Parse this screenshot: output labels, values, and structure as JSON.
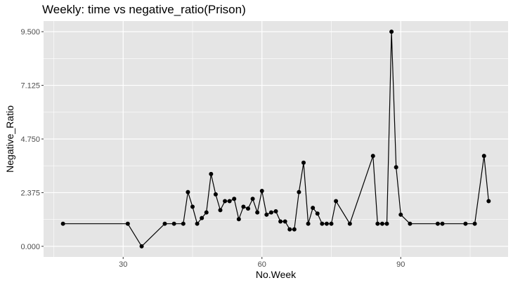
{
  "chart_data": {
    "type": "line",
    "title": "Weekly: time vs negative_ratio(Prison)",
    "xlabel": "No.Week",
    "ylabel": "Negative_Ratio",
    "xlim": [
      12.8,
      113.2
    ],
    "ylim": [
      -0.47,
      9.97
    ],
    "x_ticks": [
      30,
      60,
      90
    ],
    "x_tick_labels": [
      "30",
      "60",
      "90"
    ],
    "y_ticks": [
      0,
      2.375,
      4.75,
      7.125,
      9.5
    ],
    "y_tick_labels": [
      "0.000",
      "2.375",
      "4.750",
      "7.125",
      "9.500"
    ],
    "grid": true,
    "background": "#e5e5e5",
    "grid_color": "#ffffff",
    "line_color": "#000000",
    "series": [
      {
        "x": [
          17,
          31,
          34,
          39,
          41,
          43,
          44,
          45,
          46,
          47,
          48,
          49,
          50,
          51,
          52,
          53,
          54,
          55,
          56,
          57,
          58,
          59,
          60,
          61,
          62,
          63,
          64,
          65,
          66,
          67,
          68,
          69,
          70,
          71,
          72,
          73,
          74,
          75,
          76,
          79,
          84,
          85,
          86,
          87,
          88,
          89,
          90,
          92,
          98,
          99,
          104,
          106,
          108,
          109
        ],
        "y": [
          1.0,
          1.0,
          0.0,
          1.0,
          1.0,
          1.0,
          2.4,
          1.75,
          1.0,
          1.25,
          1.5,
          3.2,
          2.3,
          1.6,
          2.0,
          2.0,
          2.1,
          1.2,
          1.75,
          1.67,
          2.1,
          1.5,
          2.45,
          1.4,
          1.5,
          1.55,
          1.1,
          1.1,
          0.75,
          0.75,
          2.4,
          3.7,
          1.0,
          1.7,
          1.45,
          1.0,
          1.0,
          1.0,
          2.0,
          1.0,
          4.0,
          1.0,
          1.0,
          1.0,
          9.5,
          3.5,
          1.4,
          1.0,
          1.0,
          1.0,
          1.0,
          1.0,
          4.0,
          2.0
        ]
      }
    ]
  }
}
